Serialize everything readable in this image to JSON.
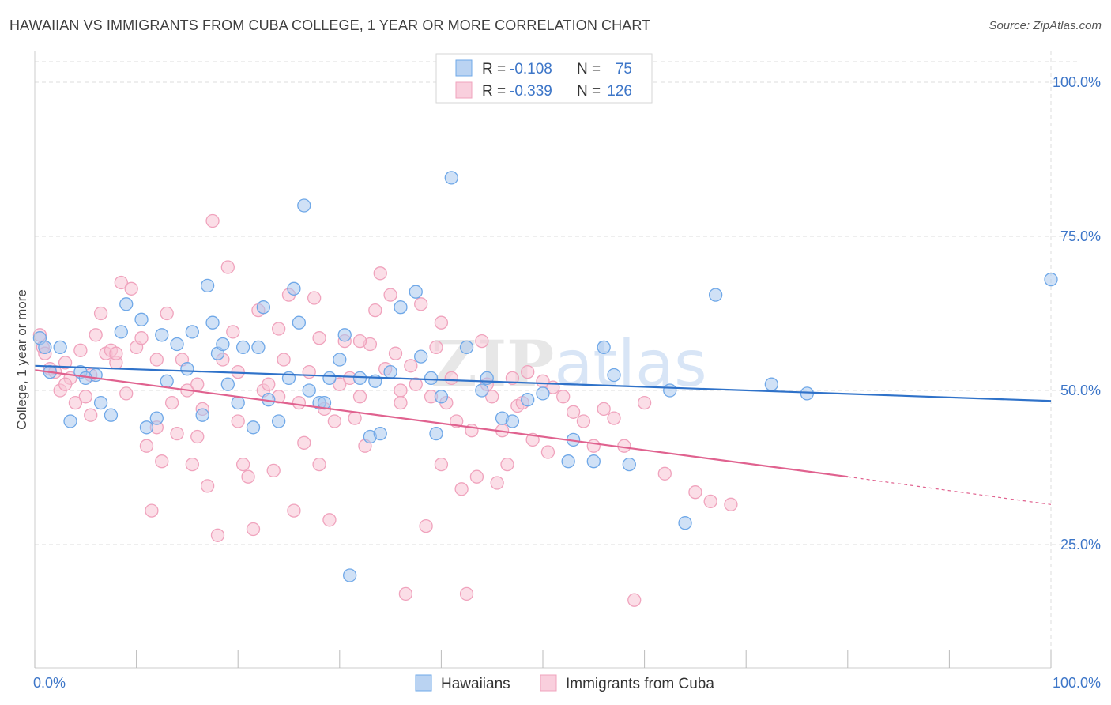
{
  "title": "HAWAIIAN VS IMMIGRANTS FROM CUBA COLLEGE, 1 YEAR OR MORE CORRELATION CHART",
  "source": "Source: ZipAtlas.com",
  "watermark": "ZIPatlas",
  "colors": {
    "blue": "#6fa8e8",
    "blue_line": "#2f72c9",
    "pink": "#f0a3bd",
    "pink_line": "#e0628f",
    "axis_text": "#3d76c8",
    "grid": "#dddddd"
  },
  "legend_stats": {
    "blue": {
      "r_label": "R =",
      "r_value": "-0.108",
      "n_label": "N =",
      "n_value": "75"
    },
    "pink": {
      "r_label": "R =",
      "r_value": "-0.339",
      "n_label": "N =",
      "n_value": "126"
    }
  },
  "chart_data": {
    "type": "scatter",
    "xlabel": "",
    "ylabel": "College, 1 year or more",
    "xlim": [
      0,
      100
    ],
    "ylim": [
      5,
      105
    ],
    "x_tick_labels": [
      {
        "value": 0,
        "label": "0.0%"
      },
      {
        "value": 100,
        "label": "100.0%"
      }
    ],
    "y_tick_labels": [
      {
        "value": 100,
        "label": "100.0%"
      },
      {
        "value": 75,
        "label": "75.0%"
      },
      {
        "value": 50,
        "label": "50.0%"
      },
      {
        "value": 25,
        "label": "25.0%"
      }
    ],
    "legend_position": "bottom-center",
    "grid": true,
    "series": [
      {
        "name": "Hawaiians",
        "color": "#6fa8e8",
        "trend": {
          "x0": 0,
          "y0": 54.0,
          "x1": 100,
          "y1": 48.3
        },
        "points": [
          [
            0.5,
            58.5
          ],
          [
            1.0,
            57.0
          ],
          [
            2.5,
            57.0
          ],
          [
            4.5,
            53.0
          ],
          [
            6.0,
            52.5
          ],
          [
            6.5,
            48.0
          ],
          [
            8.5,
            59.5
          ],
          [
            9.0,
            64.0
          ],
          [
            10.5,
            61.5
          ],
          [
            11.0,
            44.0
          ],
          [
            12.5,
            59.0
          ],
          [
            13.0,
            51.5
          ],
          [
            14.0,
            57.5
          ],
          [
            15.5,
            59.5
          ],
          [
            16.5,
            46.0
          ],
          [
            17.5,
            61.0
          ],
          [
            17.0,
            67.0
          ],
          [
            18.0,
            56.0
          ],
          [
            19.0,
            51.0
          ],
          [
            20.0,
            48.0
          ],
          [
            20.5,
            57.0
          ],
          [
            21.5,
            44.0
          ],
          [
            22.0,
            57.0
          ],
          [
            23.0,
            48.5
          ],
          [
            24.0,
            45.0
          ],
          [
            25.5,
            66.5
          ],
          [
            26.0,
            61.0
          ],
          [
            26.5,
            80.0
          ],
          [
            27.0,
            50.0
          ],
          [
            28.0,
            48.0
          ],
          [
            28.5,
            48.0
          ],
          [
            30.0,
            55.0
          ],
          [
            30.5,
            59.0
          ],
          [
            31.0,
            20.0
          ],
          [
            32.0,
            52.0
          ],
          [
            33.0,
            42.5
          ],
          [
            34.0,
            43.0
          ],
          [
            35.0,
            53.0
          ],
          [
            36.0,
            63.5
          ],
          [
            37.5,
            66.0
          ],
          [
            38.0,
            55.5
          ],
          [
            39.5,
            43.0
          ],
          [
            40.0,
            49.0
          ],
          [
            41.0,
            84.5
          ],
          [
            42.5,
            57.0
          ],
          [
            44.5,
            52.0
          ],
          [
            46.0,
            45.5
          ],
          [
            47.0,
            45.0
          ],
          [
            48.5,
            48.5
          ],
          [
            50.0,
            49.5
          ],
          [
            52.5,
            38.5
          ],
          [
            53.0,
            42.0
          ],
          [
            55.0,
            38.5
          ],
          [
            56.0,
            57.0
          ],
          [
            57.0,
            52.5
          ],
          [
            58.5,
            38.0
          ],
          [
            62.5,
            50.0
          ],
          [
            64.0,
            28.5
          ],
          [
            67.0,
            65.5
          ],
          [
            72.5,
            51.0
          ],
          [
            76.0,
            49.5
          ],
          [
            100.0,
            68.0
          ],
          [
            1.5,
            53.0
          ],
          [
            3.5,
            45.0
          ],
          [
            5.0,
            52.0
          ],
          [
            7.5,
            46.0
          ],
          [
            12.0,
            45.5
          ],
          [
            15.0,
            53.5
          ],
          [
            18.5,
            57.5
          ],
          [
            22.5,
            63.5
          ],
          [
            25.0,
            52.0
          ],
          [
            29.0,
            52.0
          ],
          [
            33.5,
            51.5
          ],
          [
            39.0,
            52.0
          ],
          [
            44.0,
            50.0
          ]
        ]
      },
      {
        "name": "Immigrants from Cuba",
        "color": "#f0a3bd",
        "trend": {
          "x0": 0,
          "y0": 53.3,
          "x1": 80,
          "y1": 36.0
        },
        "trend_dashed_to": {
          "x": 100,
          "y": 31.5
        },
        "points": [
          [
            0.5,
            59.0
          ],
          [
            0.8,
            57.0
          ],
          [
            1.0,
            56.0
          ],
          [
            1.5,
            53.5
          ],
          [
            2.0,
            53.0
          ],
          [
            2.5,
            50.0
          ],
          [
            3.0,
            54.5
          ],
          [
            3.5,
            52.0
          ],
          [
            4.0,
            48.0
          ],
          [
            4.5,
            56.5
          ],
          [
            5.0,
            49.0
          ],
          [
            5.5,
            46.0
          ],
          [
            6.0,
            59.0
          ],
          [
            6.5,
            62.5
          ],
          [
            7.0,
            56.0
          ],
          [
            7.5,
            56.5
          ],
          [
            8.0,
            54.5
          ],
          [
            8.5,
            67.5
          ],
          [
            9.0,
            49.5
          ],
          [
            9.5,
            66.5
          ],
          [
            10.0,
            57.0
          ],
          [
            10.5,
            58.5
          ],
          [
            11.0,
            41.0
          ],
          [
            11.5,
            30.5
          ],
          [
            12.0,
            44.0
          ],
          [
            12.5,
            38.5
          ],
          [
            13.0,
            62.5
          ],
          [
            13.5,
            48.0
          ],
          [
            14.0,
            43.0
          ],
          [
            14.5,
            55.0
          ],
          [
            15.0,
            50.0
          ],
          [
            15.5,
            38.0
          ],
          [
            16.0,
            42.5
          ],
          [
            16.5,
            47.0
          ],
          [
            17.0,
            34.5
          ],
          [
            17.5,
            77.5
          ],
          [
            18.0,
            26.5
          ],
          [
            18.5,
            55.0
          ],
          [
            19.0,
            70.0
          ],
          [
            19.5,
            59.5
          ],
          [
            20.0,
            45.0
          ],
          [
            20.5,
            38.0
          ],
          [
            21.0,
            36.0
          ],
          [
            21.5,
            27.5
          ],
          [
            22.0,
            63.0
          ],
          [
            22.5,
            50.0
          ],
          [
            23.0,
            51.0
          ],
          [
            23.5,
            37.0
          ],
          [
            24.0,
            60.0
          ],
          [
            24.5,
            55.0
          ],
          [
            25.0,
            65.5
          ],
          [
            25.5,
            30.5
          ],
          [
            26.0,
            48.0
          ],
          [
            26.5,
            41.5
          ],
          [
            27.0,
            53.0
          ],
          [
            27.5,
            65.0
          ],
          [
            28.0,
            58.5
          ],
          [
            28.5,
            47.0
          ],
          [
            29.0,
            29.0
          ],
          [
            29.5,
            45.0
          ],
          [
            30.0,
            51.0
          ],
          [
            30.5,
            58.0
          ],
          [
            31.0,
            52.0
          ],
          [
            31.5,
            45.5
          ],
          [
            32.0,
            49.0
          ],
          [
            32.5,
            41.0
          ],
          [
            33.0,
            57.5
          ],
          [
            33.5,
            63.0
          ],
          [
            34.0,
            69.0
          ],
          [
            34.5,
            53.5
          ],
          [
            35.0,
            65.5
          ],
          [
            35.5,
            56.0
          ],
          [
            36.0,
            50.0
          ],
          [
            36.5,
            17.0
          ],
          [
            37.0,
            54.0
          ],
          [
            37.5,
            51.0
          ],
          [
            38.0,
            64.0
          ],
          [
            38.5,
            28.0
          ],
          [
            39.0,
            49.0
          ],
          [
            39.5,
            57.0
          ],
          [
            40.0,
            38.0
          ],
          [
            40.5,
            48.0
          ],
          [
            41.0,
            52.0
          ],
          [
            41.5,
            45.0
          ],
          [
            42.0,
            34.0
          ],
          [
            42.5,
            17.0
          ],
          [
            43.0,
            43.5
          ],
          [
            43.5,
            36.0
          ],
          [
            44.0,
            58.0
          ],
          [
            44.5,
            51.0
          ],
          [
            45.0,
            49.0
          ],
          [
            45.5,
            35.0
          ],
          [
            46.0,
            43.5
          ],
          [
            46.5,
            38.0
          ],
          [
            47.0,
            52.0
          ],
          [
            47.5,
            47.5
          ],
          [
            48.0,
            48.0
          ],
          [
            48.5,
            53.0
          ],
          [
            49.0,
            42.0
          ],
          [
            50.0,
            51.5
          ],
          [
            50.5,
            40.0
          ],
          [
            51.0,
            50.5
          ],
          [
            52.0,
            49.0
          ],
          [
            53.0,
            46.5
          ],
          [
            54.0,
            45.0
          ],
          [
            55.0,
            41.0
          ],
          [
            56.0,
            47.0
          ],
          [
            57.0,
            45.5
          ],
          [
            58.0,
            41.0
          ],
          [
            59.0,
            16.0
          ],
          [
            60.0,
            48.0
          ],
          [
            62.0,
            36.5
          ],
          [
            65.0,
            33.5
          ],
          [
            66.5,
            32.0
          ],
          [
            68.5,
            31.5
          ],
          [
            3.0,
            51.0
          ],
          [
            5.5,
            52.5
          ],
          [
            8.0,
            56.0
          ],
          [
            12.0,
            55.0
          ],
          [
            16.0,
            51.0
          ],
          [
            20.0,
            53.0
          ],
          [
            24.0,
            49.0
          ],
          [
            28.0,
            38.0
          ],
          [
            32.0,
            58.0
          ],
          [
            36.0,
            48.0
          ],
          [
            40.0,
            61.0
          ]
        ]
      }
    ]
  }
}
